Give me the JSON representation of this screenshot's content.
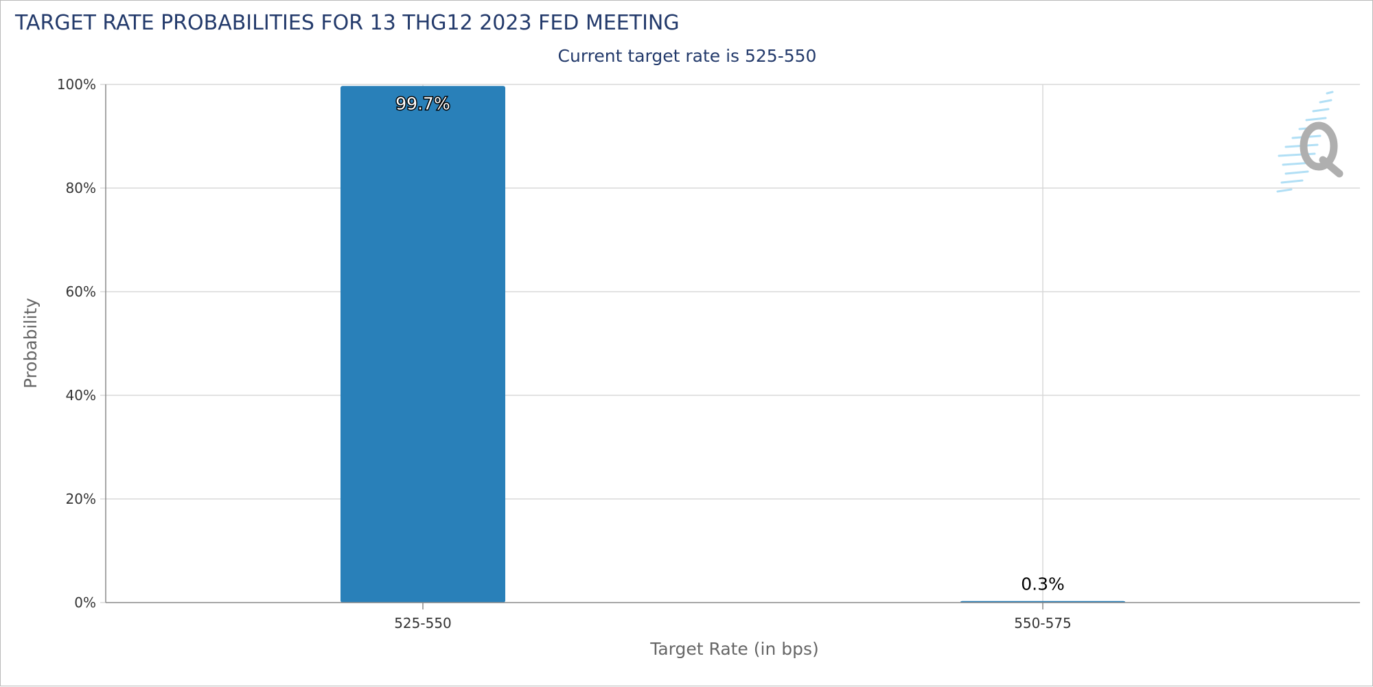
{
  "chart_data": {
    "type": "bar",
    "title": "TARGET RATE PROBABILITIES FOR 13 THG12 2023 FED MEETING",
    "subtitle": "Current target rate is 525-550",
    "xlabel": "Target Rate (in bps)",
    "ylabel": "Probability",
    "categories": [
      "525-550",
      "550-575"
    ],
    "values": [
      99.7,
      0.3
    ],
    "data_labels": [
      "99.7%",
      "0.3%"
    ],
    "ylim": [
      0,
      100
    ],
    "yticks": [
      0,
      20,
      40,
      60,
      80,
      100
    ],
    "ytick_labels": [
      "0%",
      "20%",
      "40%",
      "60%",
      "80%",
      "100%"
    ],
    "grid": true,
    "legend": "none",
    "bar_color": "#2980b9"
  }
}
